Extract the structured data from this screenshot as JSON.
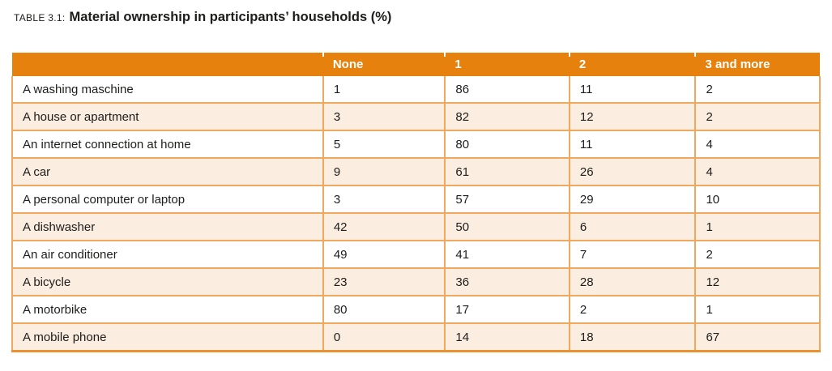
{
  "caption": {
    "label": "TABLE 3.1:",
    "title": "Material ownership in participants’ households (%)"
  },
  "table": {
    "columns": [
      "",
      "None",
      "1",
      "2",
      "3 and more"
    ],
    "rows": [
      {
        "label": "A washing maschine",
        "values": [
          "1",
          "86",
          "11",
          "2"
        ]
      },
      {
        "label": "A house or apartment",
        "values": [
          "3",
          "82",
          "12",
          "2"
        ]
      },
      {
        "label": "An internet connection at home",
        "values": [
          "5",
          "80",
          "11",
          "4"
        ]
      },
      {
        "label": "A car",
        "values": [
          "9",
          "61",
          "26",
          "4"
        ]
      },
      {
        "label": "A personal computer or laptop",
        "values": [
          "3",
          "57",
          "29",
          "10"
        ]
      },
      {
        "label": "A dishwasher",
        "values": [
          "42",
          "50",
          "6",
          "1"
        ]
      },
      {
        "label": "An air conditioner",
        "values": [
          "49",
          "41",
          "7",
          "2"
        ]
      },
      {
        "label": "A bicycle",
        "values": [
          "23",
          "36",
          "28",
          "12"
        ]
      },
      {
        "label": "A motorbike",
        "values": [
          "80",
          "17",
          "2",
          "1"
        ]
      },
      {
        "label": "A mobile phone",
        "values": [
          "0",
          "14",
          "18",
          "67"
        ]
      }
    ]
  },
  "colors": {
    "header_orange": "#e7810d",
    "grid_line": "#f0a85e",
    "bottom_border": "#ec9130",
    "row_peach": "#fbede0",
    "header_text": "#ffffff",
    "body_text": "#1d1d1b"
  }
}
